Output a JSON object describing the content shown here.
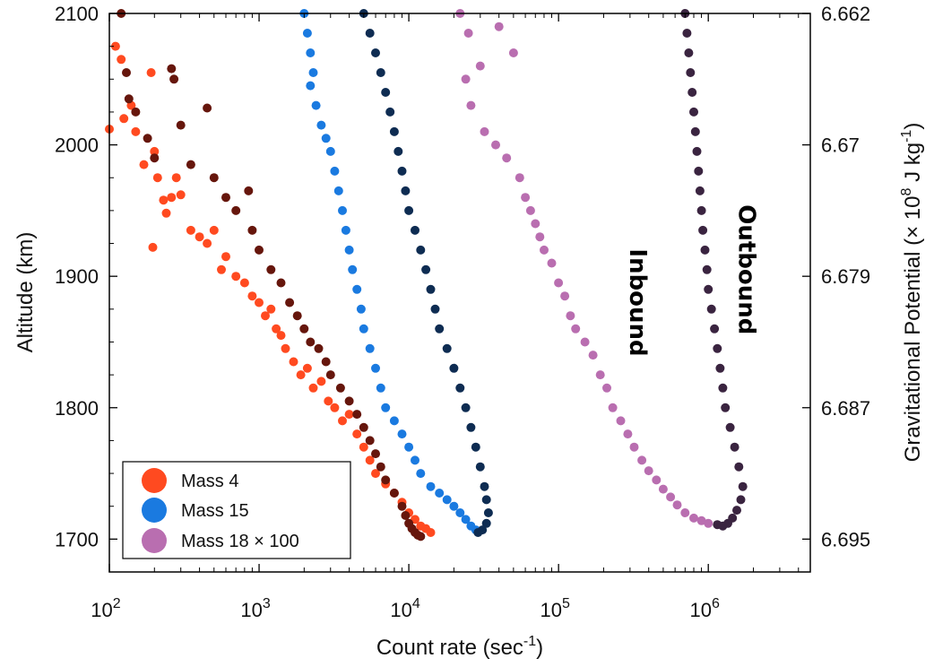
{
  "chart_data": {
    "type": "scatter",
    "xlabel": "Count rate (sec",
    "xlabel_sup": "-1",
    "xlabel_end": ")",
    "ylabel": "Altitude (km)",
    "y2label": "Gravitational Potential (× 10",
    "y2label_sup1": "8",
    "y2label_mid": " J kg",
    "y2label_sup2": "-1",
    "y2label_end": ")",
    "x_scale": "log",
    "xlim": [
      100,
      4800000
    ],
    "ylim": [
      1675,
      2100
    ],
    "x_ticks": [
      {
        "value": 100,
        "base": "10",
        "exp": "2"
      },
      {
        "value": 1000,
        "base": "10",
        "exp": "3"
      },
      {
        "value": 10000,
        "base": "10",
        "exp": "4"
      },
      {
        "value": 100000,
        "base": "10",
        "exp": "5"
      },
      {
        "value": 1000000,
        "base": "10",
        "exp": "6"
      }
    ],
    "y_ticks": [
      1700,
      1800,
      1900,
      2000,
      2100
    ],
    "y2_ticks": [
      {
        "at": 1700,
        "label": "6.695"
      },
      {
        "at": 1800,
        "label": "6.687"
      },
      {
        "at": 1900,
        "label": "6.679"
      },
      {
        "at": 2000,
        "label": "6.67"
      },
      {
        "at": 2100,
        "label": "6.662"
      }
    ],
    "grid": false,
    "legend_position": "bottom-left",
    "legend": [
      {
        "label": "Mass 4",
        "color": "#ff4a20"
      },
      {
        "label": "Mass 15",
        "color": "#1a7ae0"
      },
      {
        "label": "Mass 18 × 100",
        "color": "#b96eb0"
      }
    ],
    "annotations": [
      {
        "text": "Inbound",
        "x": 300000,
        "y": 1880,
        "rotate": 90
      },
      {
        "text": "Outbound",
        "x": 1600000,
        "y": 1905,
        "rotate": 90
      }
    ],
    "series": [
      {
        "name": "Mass 4",
        "color": "#ff4a20",
        "points": [
          [
            100,
            2012
          ],
          [
            110,
            2075
          ],
          [
            120,
            2065
          ],
          [
            125,
            2020
          ],
          [
            140,
            2030
          ],
          [
            150,
            2010
          ],
          [
            170,
            1985
          ],
          [
            190,
            2055
          ],
          [
            195,
            1922
          ],
          [
            200,
            1995
          ],
          [
            210,
            1975
          ],
          [
            230,
            1958
          ],
          [
            240,
            1948
          ],
          [
            260,
            1960
          ],
          [
            280,
            1975
          ],
          [
            300,
            1962
          ],
          [
            350,
            1935
          ],
          [
            400,
            1930
          ],
          [
            450,
            1925
          ],
          [
            500,
            1935
          ],
          [
            560,
            1905
          ],
          [
            600,
            1915
          ],
          [
            700,
            1900
          ],
          [
            800,
            1895
          ],
          [
            900,
            1885
          ],
          [
            1000,
            1880
          ],
          [
            1100,
            1870
          ],
          [
            1200,
            1875
          ],
          [
            1300,
            1860
          ],
          [
            1400,
            1855
          ],
          [
            1500,
            1845
          ],
          [
            1700,
            1835
          ],
          [
            1900,
            1825
          ],
          [
            2100,
            1830
          ],
          [
            2300,
            1815
          ],
          [
            2600,
            1820
          ],
          [
            2900,
            1805
          ],
          [
            3200,
            1800
          ],
          [
            3600,
            1790
          ],
          [
            4000,
            1795
          ],
          [
            4500,
            1780
          ],
          [
            5000,
            1770
          ],
          [
            5500,
            1760
          ],
          [
            6000,
            1750
          ],
          [
            7000,
            1742
          ],
          [
            8000,
            1735
          ],
          [
            9000,
            1728
          ],
          [
            10000,
            1720
          ],
          [
            11000,
            1715
          ],
          [
            12000,
            1710
          ],
          [
            13000,
            1708
          ],
          [
            14000,
            1705
          ]
        ]
      },
      {
        "name": "",
        "color": "#66160c",
        "points": [
          [
            120,
            2100
          ],
          [
            130,
            2055
          ],
          [
            135,
            2035
          ],
          [
            150,
            2025
          ],
          [
            180,
            2005
          ],
          [
            200,
            1990
          ],
          [
            260,
            2058
          ],
          [
            270,
            2050
          ],
          [
            300,
            2015
          ],
          [
            350,
            1985
          ],
          [
            450,
            2028
          ],
          [
            500,
            1975
          ],
          [
            600,
            1960
          ],
          [
            700,
            1950
          ],
          [
            850,
            1965
          ],
          [
            900,
            1935
          ],
          [
            1000,
            1920
          ],
          [
            1200,
            1905
          ],
          [
            1400,
            1895
          ],
          [
            1600,
            1880
          ],
          [
            1800,
            1870
          ],
          [
            2000,
            1860
          ],
          [
            2200,
            1850
          ],
          [
            2500,
            1845
          ],
          [
            2800,
            1835
          ],
          [
            3000,
            1825
          ],
          [
            3500,
            1815
          ],
          [
            4000,
            1805
          ],
          [
            4500,
            1795
          ],
          [
            5000,
            1785
          ],
          [
            5500,
            1775
          ],
          [
            6000,
            1765
          ],
          [
            6500,
            1755
          ],
          [
            7000,
            1745
          ],
          [
            8000,
            1735
          ],
          [
            9000,
            1725
          ],
          [
            9500,
            1718
          ],
          [
            10000,
            1712
          ],
          [
            10500,
            1708
          ],
          [
            11000,
            1705
          ],
          [
            11500,
            1703
          ],
          [
            12000,
            1702
          ]
        ]
      },
      {
        "name": "Mass 15",
        "color": "#1a7ae0",
        "points": [
          [
            2000,
            2100
          ],
          [
            2100,
            2085
          ],
          [
            2200,
            2070
          ],
          [
            2300,
            2055
          ],
          [
            2200,
            2045
          ],
          [
            2400,
            2030
          ],
          [
            2600,
            2015
          ],
          [
            2800,
            2005
          ],
          [
            3000,
            1995
          ],
          [
            3200,
            1980
          ],
          [
            3400,
            1965
          ],
          [
            3600,
            1950
          ],
          [
            3800,
            1935
          ],
          [
            4000,
            1920
          ],
          [
            4200,
            1905
          ],
          [
            4500,
            1890
          ],
          [
            4800,
            1875
          ],
          [
            5000,
            1860
          ],
          [
            5500,
            1845
          ],
          [
            6000,
            1830
          ],
          [
            6500,
            1815
          ],
          [
            7000,
            1800
          ],
          [
            8000,
            1790
          ],
          [
            9000,
            1780
          ],
          [
            10000,
            1770
          ],
          [
            11000,
            1760
          ],
          [
            12000,
            1750
          ],
          [
            14000,
            1740
          ],
          [
            16000,
            1735
          ],
          [
            18000,
            1730
          ],
          [
            20000,
            1725
          ],
          [
            22000,
            1720
          ],
          [
            24000,
            1715
          ],
          [
            26000,
            1710
          ],
          [
            28000,
            1707
          ]
        ]
      },
      {
        "name": "",
        "color": "#0e2c52",
        "points": [
          [
            5000,
            2100
          ],
          [
            5500,
            2085
          ],
          [
            6000,
            2070
          ],
          [
            6500,
            2055
          ],
          [
            7000,
            2040
          ],
          [
            7500,
            2025
          ],
          [
            8000,
            2010
          ],
          [
            8500,
            1995
          ],
          [
            9000,
            1980
          ],
          [
            9500,
            1965
          ],
          [
            10000,
            1950
          ],
          [
            11000,
            1935
          ],
          [
            12000,
            1920
          ],
          [
            13000,
            1905
          ],
          [
            14000,
            1890
          ],
          [
            15000,
            1875
          ],
          [
            16000,
            1860
          ],
          [
            18000,
            1845
          ],
          [
            20000,
            1830
          ],
          [
            22000,
            1815
          ],
          [
            24000,
            1800
          ],
          [
            26000,
            1785
          ],
          [
            28000,
            1770
          ],
          [
            30000,
            1755
          ],
          [
            32000,
            1740
          ],
          [
            33000,
            1730
          ],
          [
            34000,
            1720
          ],
          [
            33000,
            1712
          ],
          [
            31000,
            1707
          ],
          [
            29000,
            1705
          ]
        ]
      },
      {
        "name": "Mass 18 × 100",
        "color": "#b96eb0",
        "points": [
          [
            22000,
            2100
          ],
          [
            25000,
            2085
          ],
          [
            24000,
            2050
          ],
          [
            26000,
            2030
          ],
          [
            30000,
            2060
          ],
          [
            32000,
            2010
          ],
          [
            38000,
            2000
          ],
          [
            40000,
            2090
          ],
          [
            45000,
            1990
          ],
          [
            50000,
            2070
          ],
          [
            55000,
            1975
          ],
          [
            60000,
            1960
          ],
          [
            65000,
            1950
          ],
          [
            70000,
            1940
          ],
          [
            75000,
            1930
          ],
          [
            80000,
            1920
          ],
          [
            90000,
            1910
          ],
          [
            100000,
            1895
          ],
          [
            110000,
            1885
          ],
          [
            120000,
            1870
          ],
          [
            130000,
            1860
          ],
          [
            150000,
            1850
          ],
          [
            170000,
            1840
          ],
          [
            190000,
            1825
          ],
          [
            210000,
            1815
          ],
          [
            230000,
            1800
          ],
          [
            260000,
            1790
          ],
          [
            290000,
            1780
          ],
          [
            320000,
            1770
          ],
          [
            360000,
            1760
          ],
          [
            400000,
            1752
          ],
          [
            450000,
            1745
          ],
          [
            500000,
            1738
          ],
          [
            560000,
            1732
          ],
          [
            620000,
            1726
          ],
          [
            700000,
            1720
          ],
          [
            800000,
            1716
          ],
          [
            900000,
            1714
          ],
          [
            1000000,
            1712
          ]
        ]
      },
      {
        "name": "",
        "color": "#3a2440",
        "points": [
          [
            700000,
            2100
          ],
          [
            720000,
            2085
          ],
          [
            740000,
            2070
          ],
          [
            760000,
            2055
          ],
          [
            780000,
            2040
          ],
          [
            800000,
            2025
          ],
          [
            820000,
            2010
          ],
          [
            840000,
            1995
          ],
          [
            860000,
            1980
          ],
          [
            880000,
            1965
          ],
          [
            900000,
            1950
          ],
          [
            920000,
            1935
          ],
          [
            950000,
            1920
          ],
          [
            980000,
            1905
          ],
          [
            1000000,
            1890
          ],
          [
            1050000,
            1875
          ],
          [
            1100000,
            1860
          ],
          [
            1150000,
            1845
          ],
          [
            1200000,
            1830
          ],
          [
            1250000,
            1815
          ],
          [
            1300000,
            1800
          ],
          [
            1400000,
            1785
          ],
          [
            1500000,
            1770
          ],
          [
            1600000,
            1755
          ],
          [
            1700000,
            1740
          ],
          [
            1650000,
            1730
          ],
          [
            1550000,
            1722
          ],
          [
            1450000,
            1716
          ],
          [
            1350000,
            1712
          ],
          [
            1250000,
            1710
          ],
          [
            1150000,
            1711
          ]
        ]
      }
    ]
  }
}
